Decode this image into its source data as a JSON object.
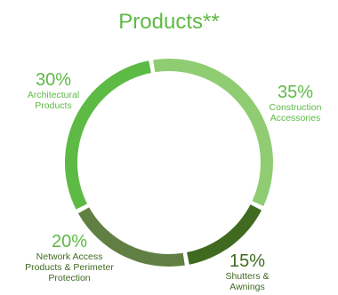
{
  "chart_data": {
    "type": "pie",
    "style": "donut",
    "title": "Products**",
    "slices": [
      {
        "label": "Construction Accessories",
        "label_lines": [
          "Construction",
          "Accessories"
        ],
        "value": 35,
        "value_label": "35%",
        "color": "#8fcc72"
      },
      {
        "label": "Shutters & Awnings",
        "label_lines": [
          "Shutters &",
          "Awnings"
        ],
        "value": 15,
        "value_label": "15%",
        "color": "#3f6a1f"
      },
      {
        "label": "Network Access Products & Perimeter Protection",
        "label_lines": [
          "Network Access",
          "Products & Perimeter",
          "Protection"
        ],
        "value": 20,
        "value_label": "20%",
        "color": "#617f43"
      },
      {
        "label": "Architectural Products",
        "label_lines": [
          "Architectural",
          "Products"
        ],
        "value": 30,
        "value_label": "30%",
        "color": "#5dba45"
      }
    ],
    "legend": "none"
  },
  "colors": {
    "title": "#5dba45",
    "label_text": "#5dba45",
    "background": "#ffffff"
  }
}
